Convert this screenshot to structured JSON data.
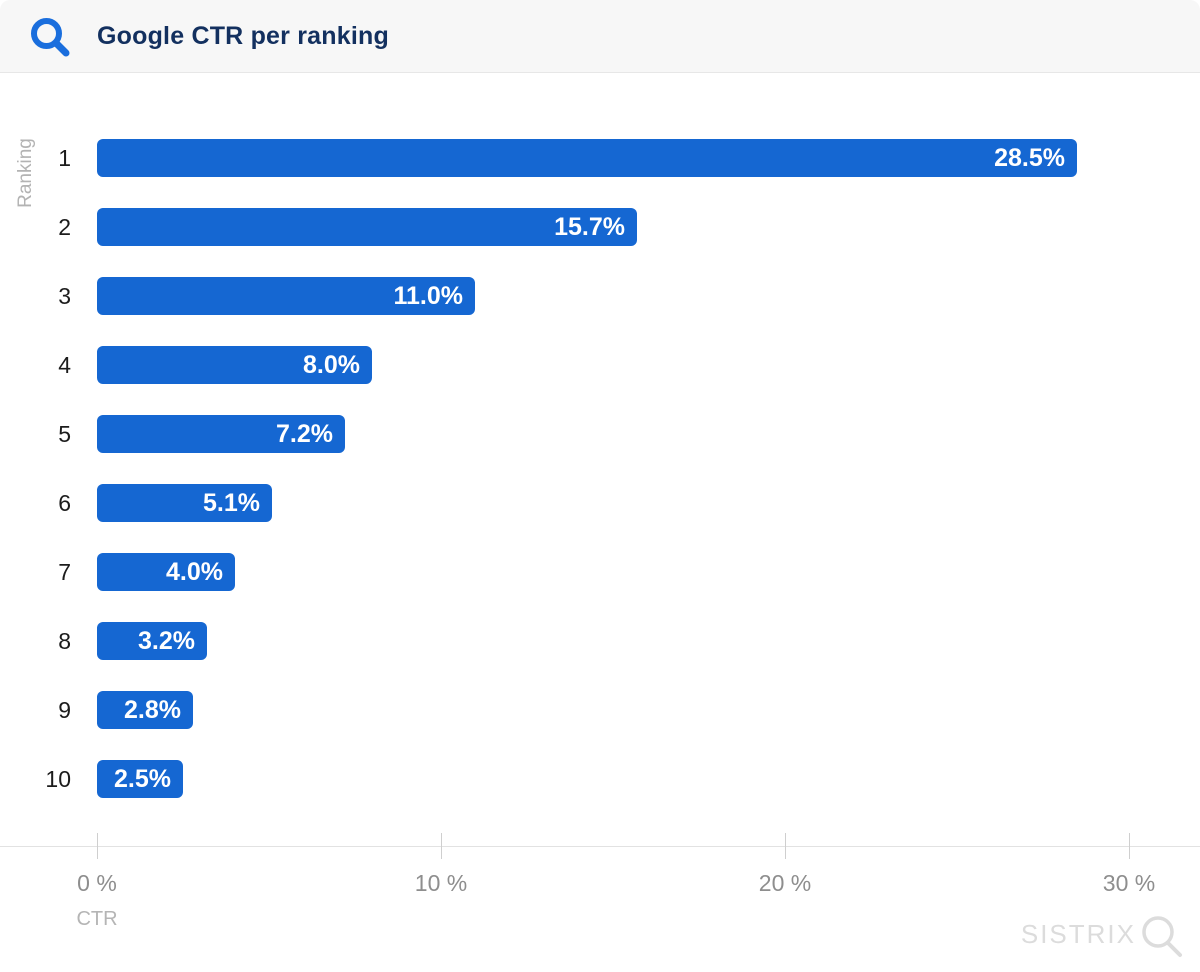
{
  "header": {
    "title": "Google CTR per ranking"
  },
  "chart_data": {
    "type": "bar",
    "orientation": "horizontal",
    "title": "Google CTR per ranking",
    "categories": [
      "1",
      "2",
      "3",
      "4",
      "5",
      "6",
      "7",
      "8",
      "9",
      "10"
    ],
    "values": [
      28.5,
      15.7,
      11.0,
      8.0,
      7.2,
      5.1,
      4.0,
      3.2,
      2.8,
      2.5
    ],
    "value_labels": [
      "28.5%",
      "15.7%",
      "11.0%",
      "8.0%",
      "7.2%",
      "5.1%",
      "4.0%",
      "3.2%",
      "2.8%",
      "2.5%"
    ],
    "xlabel": "CTR",
    "ylabel": "Ranking",
    "x_ticks": [
      {
        "value": 0,
        "label": "0 %"
      },
      {
        "value": 10,
        "label": "10 %"
      },
      {
        "value": 20,
        "label": "20 %"
      },
      {
        "value": 30,
        "label": "30 %"
      }
    ],
    "xlim": [
      0,
      32
    ],
    "grid": false,
    "legend": false,
    "bar_color": "#1567d2",
    "value_label_color": "#ffffff",
    "tick_color": "#8e8e8e"
  },
  "colors": {
    "accent_blue": "#1a6edd",
    "title_navy": "#13305f",
    "watermark_gray": "#dcdcdc"
  },
  "watermark": {
    "text": "SISTRIX"
  }
}
